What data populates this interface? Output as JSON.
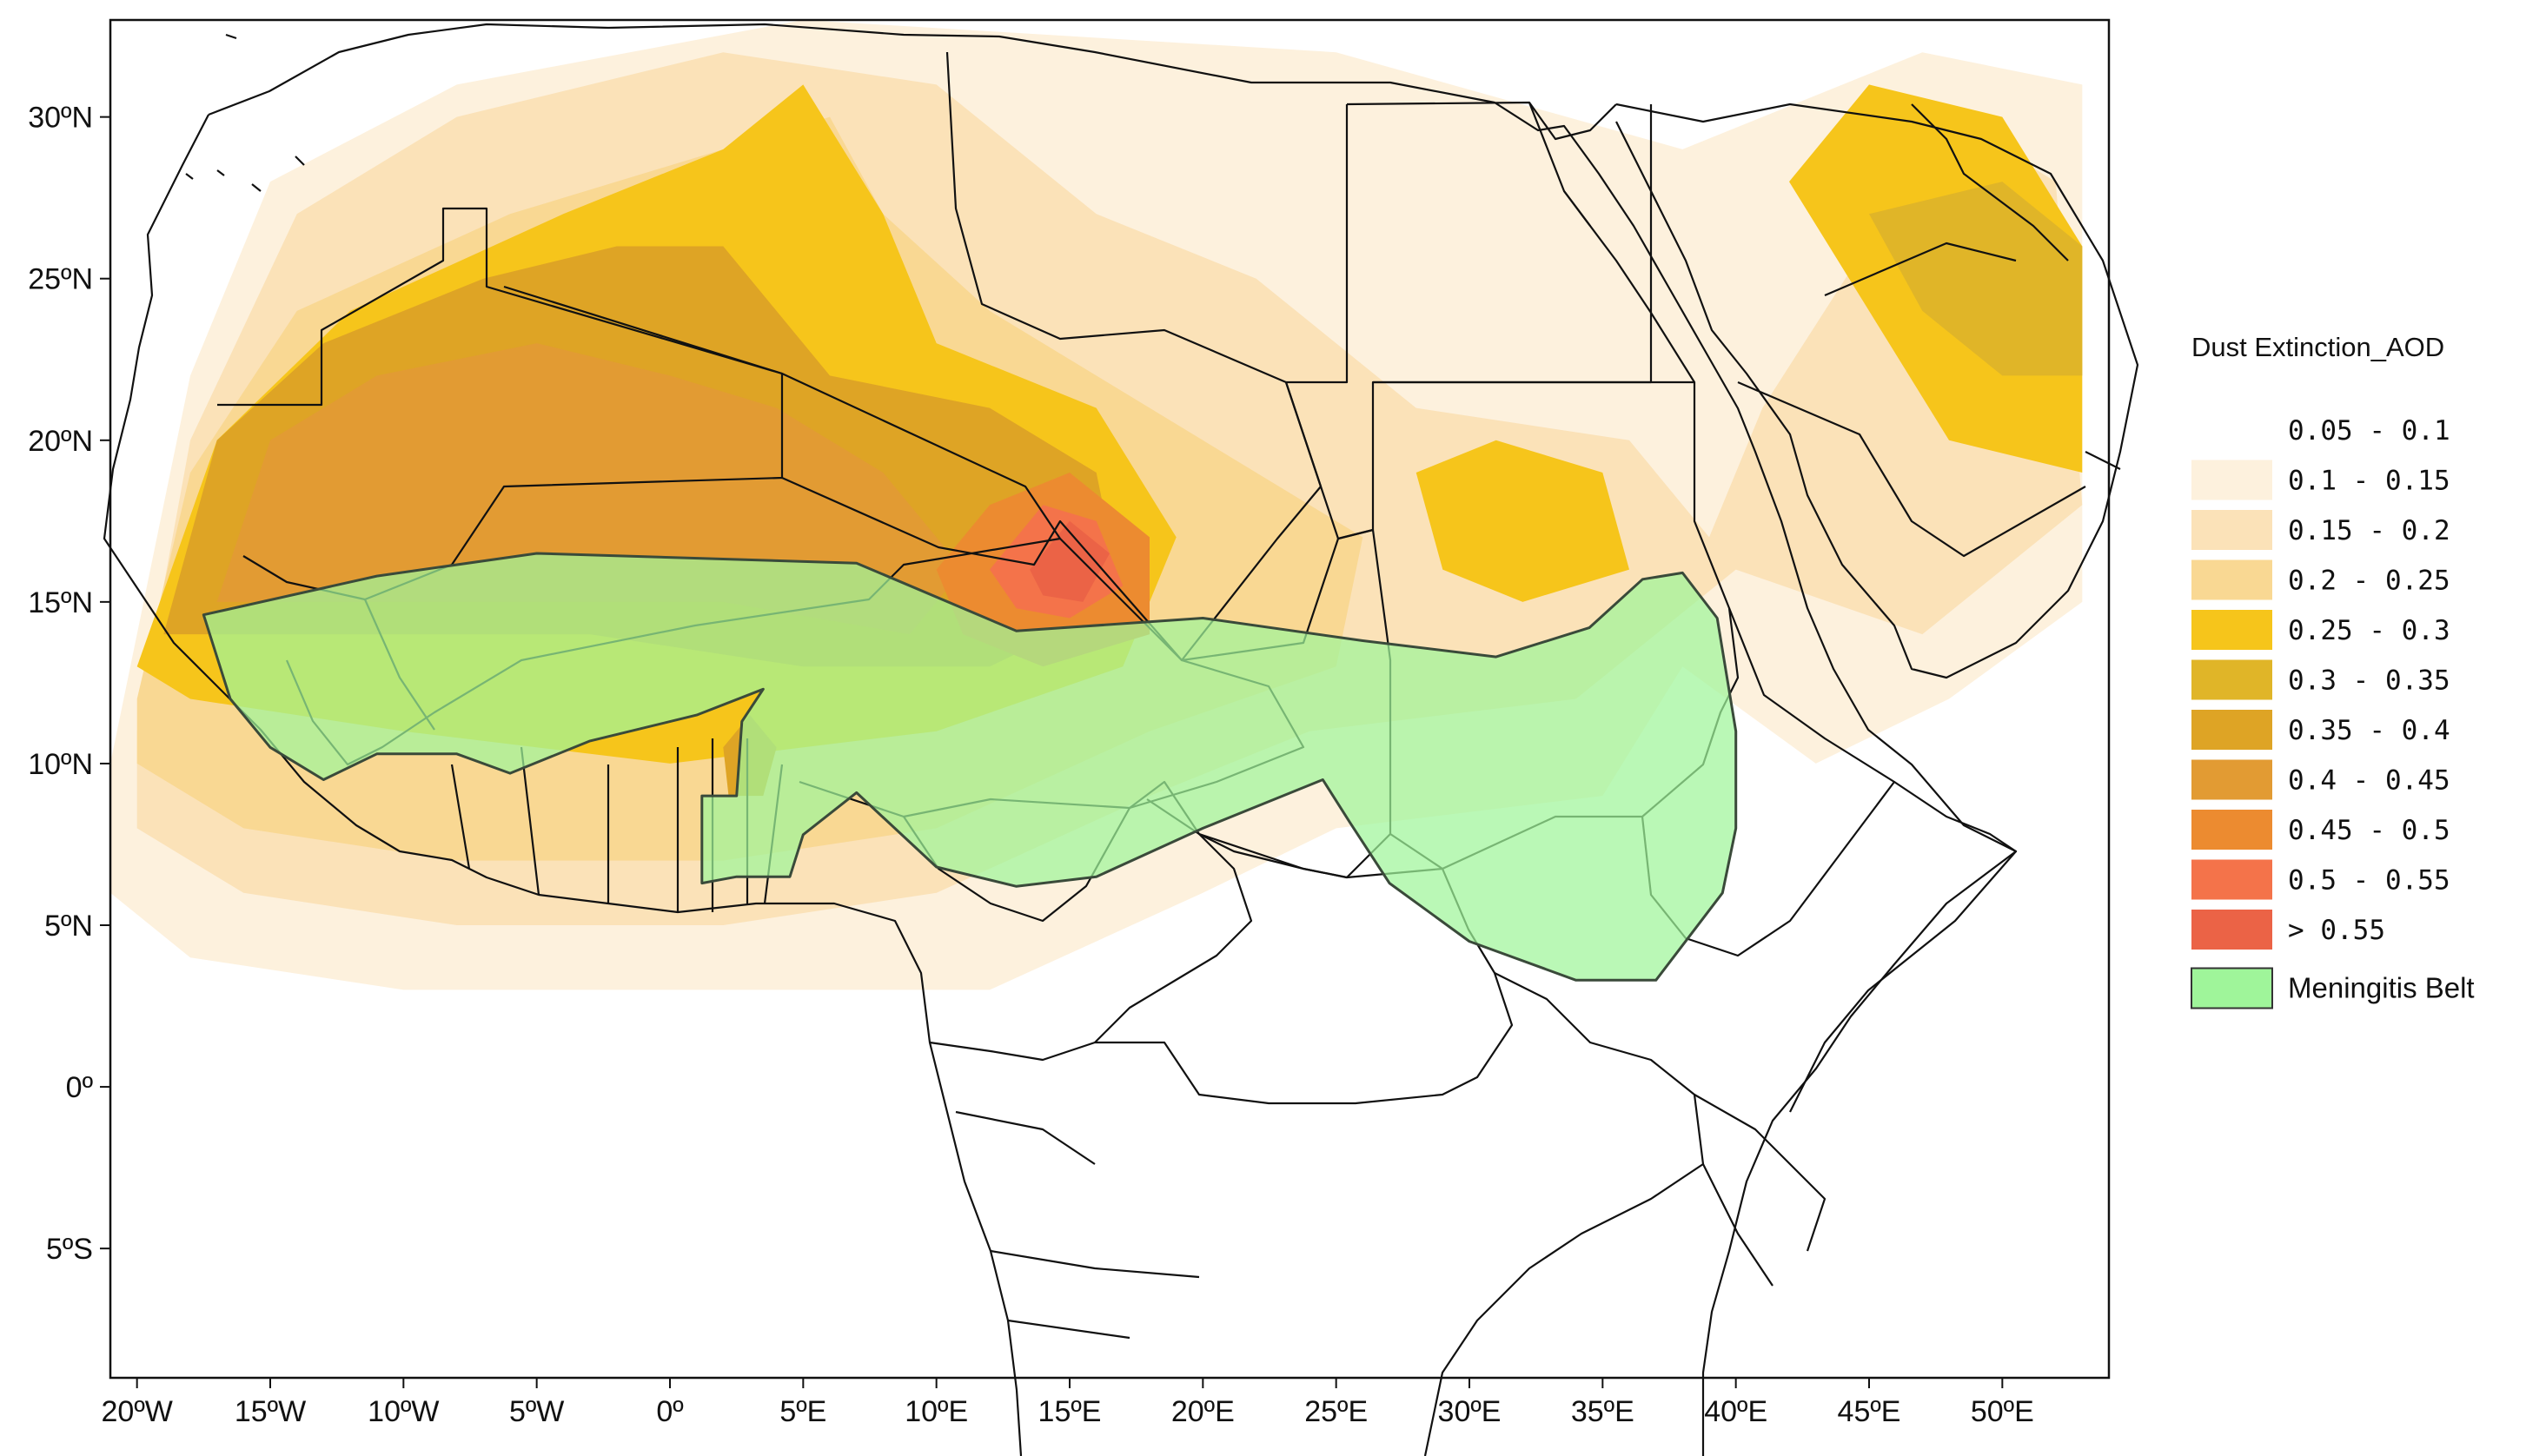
{
  "map": {
    "lon_range": [
      -21,
      54
    ],
    "lat_range": [
      -9,
      33
    ],
    "lon_ticks": [
      -20,
      -15,
      -10,
      -5,
      0,
      5,
      10,
      15,
      20,
      25,
      30,
      35,
      40,
      45,
      50
    ],
    "lat_ticks": [
      30,
      25,
      20,
      15,
      10,
      5,
      0,
      -5
    ],
    "lon_tick_labels": [
      "20ºW",
      "15ºW",
      "10ºW",
      "5ºW",
      "0º",
      "5ºE",
      "10ºE",
      "15ºE",
      "20ºE",
      "25ºE",
      "30ºE",
      "35ºE",
      "40ºE",
      "45ºE",
      "50ºE"
    ],
    "lat_tick_labels": [
      "30ºN",
      "25ºN",
      "20ºN",
      "15ºN",
      "10ºN",
      "5ºN",
      "0º",
      "5ºS"
    ]
  },
  "legend": {
    "title": "Dust Extinction_AOD",
    "classes": [
      {
        "label": "0.05 - 0.1",
        "color": "#ffffff"
      },
      {
        "label": "0.1 - 0.15",
        "color": "#fdf1dd"
      },
      {
        "label": "0.15 - 0.2",
        "color": "#fbe2b8"
      },
      {
        "label": "0.2 - 0.25",
        "color": "#f9d893"
      },
      {
        "label": "0.25 - 0.3",
        "color": "#f6c51b"
      },
      {
        "label": "0.3 - 0.35",
        "color": "#e0b528"
      },
      {
        "label": "0.35 - 0.4",
        "color": "#dea425"
      },
      {
        "label": "0.4 - 0.45",
        "color": "#e29b33"
      },
      {
        "label": "0.45 - 0.5",
        "color": "#ec8b30"
      },
      {
        "label": "0.5 - 0.55",
        "color": "#f4734a"
      },
      {
        "label": "> 0.55",
        "color": "#eb6346"
      }
    ],
    "belt_label": "Meningitis Belt",
    "belt_color": "#9ff59a"
  },
  "dust_regions": [
    {
      "aod_class": 1,
      "outline": [
        [
          -21,
          10
        ],
        [
          -19,
          18
        ],
        [
          -18,
          22
        ],
        [
          -15,
          28
        ],
        [
          -8,
          31
        ],
        [
          5,
          33
        ],
        [
          25,
          32
        ],
        [
          38,
          29
        ],
        [
          47,
          32
        ],
        [
          53,
          31
        ],
        [
          53,
          15
        ],
        [
          48,
          12
        ],
        [
          43,
          10
        ],
        [
          38,
          13
        ],
        [
          35,
          9
        ],
        [
          25,
          8
        ],
        [
          20,
          6
        ],
        [
          12,
          3
        ],
        [
          0,
          3
        ],
        [
          -10,
          3
        ],
        [
          -18,
          4
        ],
        [
          -21,
          6
        ]
      ]
    },
    {
      "aod_class": 2,
      "outline": [
        [
          -20,
          11
        ],
        [
          -18,
          20
        ],
        [
          -14,
          27
        ],
        [
          -8,
          30
        ],
        [
          2,
          32
        ],
        [
          10,
          31
        ],
        [
          16,
          27
        ],
        [
          22,
          25
        ],
        [
          28,
          21
        ],
        [
          36,
          20
        ],
        [
          39,
          17
        ],
        [
          41,
          21
        ],
        [
          48,
          30
        ],
        [
          52,
          28
        ],
        [
          53,
          18
        ],
        [
          47,
          14
        ],
        [
          40,
          16
        ],
        [
          34,
          12
        ],
        [
          24,
          11
        ],
        [
          18,
          9
        ],
        [
          10,
          6
        ],
        [
          2,
          5
        ],
        [
          -8,
          5
        ],
        [
          -16,
          6
        ],
        [
          -20,
          8
        ]
      ]
    },
    {
      "aod_class": 3,
      "outline": [
        [
          -20,
          12
        ],
        [
          -18,
          19
        ],
        [
          -14,
          24
        ],
        [
          -6,
          27
        ],
        [
          2,
          29
        ],
        [
          6,
          30
        ],
        [
          8,
          27
        ],
        [
          12,
          24
        ],
        [
          20,
          20
        ],
        [
          26,
          17
        ],
        [
          25,
          13
        ],
        [
          18,
          11
        ],
        [
          10,
          8
        ],
        [
          2,
          7
        ],
        [
          -8,
          7
        ],
        [
          -16,
          8
        ],
        [
          -20,
          10
        ]
      ]
    },
    {
      "aod_class": 4,
      "outline": [
        [
          -20,
          13
        ],
        [
          -17,
          20
        ],
        [
          -12,
          24
        ],
        [
          -4,
          27
        ],
        [
          2,
          29
        ],
        [
          5,
          31
        ],
        [
          8,
          27
        ],
        [
          10,
          23
        ],
        [
          16,
          21
        ],
        [
          19,
          17
        ],
        [
          17,
          13
        ],
        [
          10,
          11
        ],
        [
          0,
          10
        ],
        [
          -10,
          11
        ],
        [
          -18,
          12
        ]
      ]
    },
    {
      "aod_class": 4,
      "outline": [
        [
          28,
          19
        ],
        [
          29,
          16
        ],
        [
          32,
          15
        ],
        [
          36,
          16
        ],
        [
          35,
          19
        ],
        [
          31,
          20
        ]
      ]
    },
    {
      "aod_class": 4,
      "outline": [
        [
          42,
          28
        ],
        [
          45,
          24
        ],
        [
          48,
          20
        ],
        [
          53,
          19
        ],
        [
          53,
          26
        ],
        [
          50,
          30
        ],
        [
          45,
          31
        ]
      ]
    },
    {
      "aod_class": 5,
      "outline": [
        [
          45,
          27
        ],
        [
          47,
          24
        ],
        [
          50,
          22
        ],
        [
          53,
          22
        ],
        [
          53,
          26
        ],
        [
          50,
          28
        ]
      ]
    },
    {
      "aod_class": 6,
      "outline": [
        [
          -19,
          14
        ],
        [
          -17,
          20
        ],
        [
          -13,
          23
        ],
        [
          -7,
          25
        ],
        [
          -2,
          26
        ],
        [
          2,
          26
        ],
        [
          6,
          22
        ],
        [
          12,
          21
        ],
        [
          16,
          19
        ],
        [
          17,
          15
        ],
        [
          12,
          13
        ],
        [
          5,
          13
        ],
        [
          -3,
          14
        ],
        [
          -12,
          14
        ],
        [
          -17,
          14
        ]
      ]
    },
    {
      "aod_class": 7,
      "outline": [
        [
          -17,
          15
        ],
        [
          -15,
          20
        ],
        [
          -11,
          22
        ],
        [
          -5,
          23
        ],
        [
          0,
          22
        ],
        [
          4,
          21
        ],
        [
          8,
          19
        ],
        [
          11,
          16
        ],
        [
          9,
          14
        ],
        [
          2,
          15
        ],
        [
          -6,
          15
        ],
        [
          -13,
          15
        ]
      ]
    },
    {
      "aod_class": 8,
      "outline": [
        [
          10,
          16
        ],
        [
          12,
          18
        ],
        [
          15,
          19
        ],
        [
          18,
          17
        ],
        [
          18,
          14
        ],
        [
          14,
          13
        ],
        [
          11,
          14
        ]
      ]
    },
    {
      "aod_class": 9,
      "outline": [
        [
          12,
          16
        ],
        [
          14,
          18
        ],
        [
          16,
          17.5
        ],
        [
          17,
          15.5
        ],
        [
          15,
          14.5
        ],
        [
          13,
          14.8
        ]
      ]
    },
    {
      "aod_class": 10,
      "outline": [
        [
          13.5,
          16
        ],
        [
          15,
          17.5
        ],
        [
          16.5,
          16.5
        ],
        [
          15.5,
          15
        ],
        [
          14,
          15.2
        ]
      ]
    },
    {
      "aod_class": 6,
      "outline": [
        [
          2,
          10.5
        ],
        [
          3,
          11.5
        ],
        [
          4,
          10.5
        ],
        [
          3.5,
          9
        ],
        [
          2.2,
          9
        ]
      ]
    }
  ],
  "meningitis_belt": [
    [
      -17.5,
      14.6
    ],
    [
      -11,
      15.8
    ],
    [
      -5,
      16.5
    ],
    [
      7,
      16.2
    ],
    [
      13,
      14.1
    ],
    [
      20,
      14.5
    ],
    [
      26,
      13.8
    ],
    [
      31,
      13.3
    ],
    [
      34.5,
      14.2
    ],
    [
      36.5,
      15.7
    ],
    [
      38,
      15.9
    ],
    [
      39.3,
      14.5
    ],
    [
      40,
      11
    ],
    [
      40,
      8
    ],
    [
      39.5,
      6
    ],
    [
      37,
      3.3
    ],
    [
      34,
      3.3
    ],
    [
      30,
      4.5
    ],
    [
      27,
      6.3
    ],
    [
      25.5,
      8.2
    ],
    [
      24.5,
      9.5
    ],
    [
      20,
      8
    ],
    [
      16,
      6.5
    ],
    [
      13,
      6.2
    ],
    [
      10,
      6.8
    ],
    [
      7,
      9.1
    ],
    [
      5,
      7.8
    ],
    [
      4.5,
      6.5
    ],
    [
      2.5,
      6.5
    ],
    [
      1.2,
      6.3
    ],
    [
      1.2,
      9
    ],
    [
      2.5,
      9
    ],
    [
      2.7,
      11.3
    ],
    [
      3.5,
      12.3
    ],
    [
      1,
      11.5
    ],
    [
      -3,
      10.7
    ],
    [
      -6,
      9.7
    ],
    [
      -8,
      10.3
    ],
    [
      -11,
      10.3
    ],
    [
      -13,
      9.5
    ],
    [
      -15,
      10.5
    ],
    [
      -16.5,
      12
    ],
    [
      -17.5,
      14.6
    ]
  ]
}
